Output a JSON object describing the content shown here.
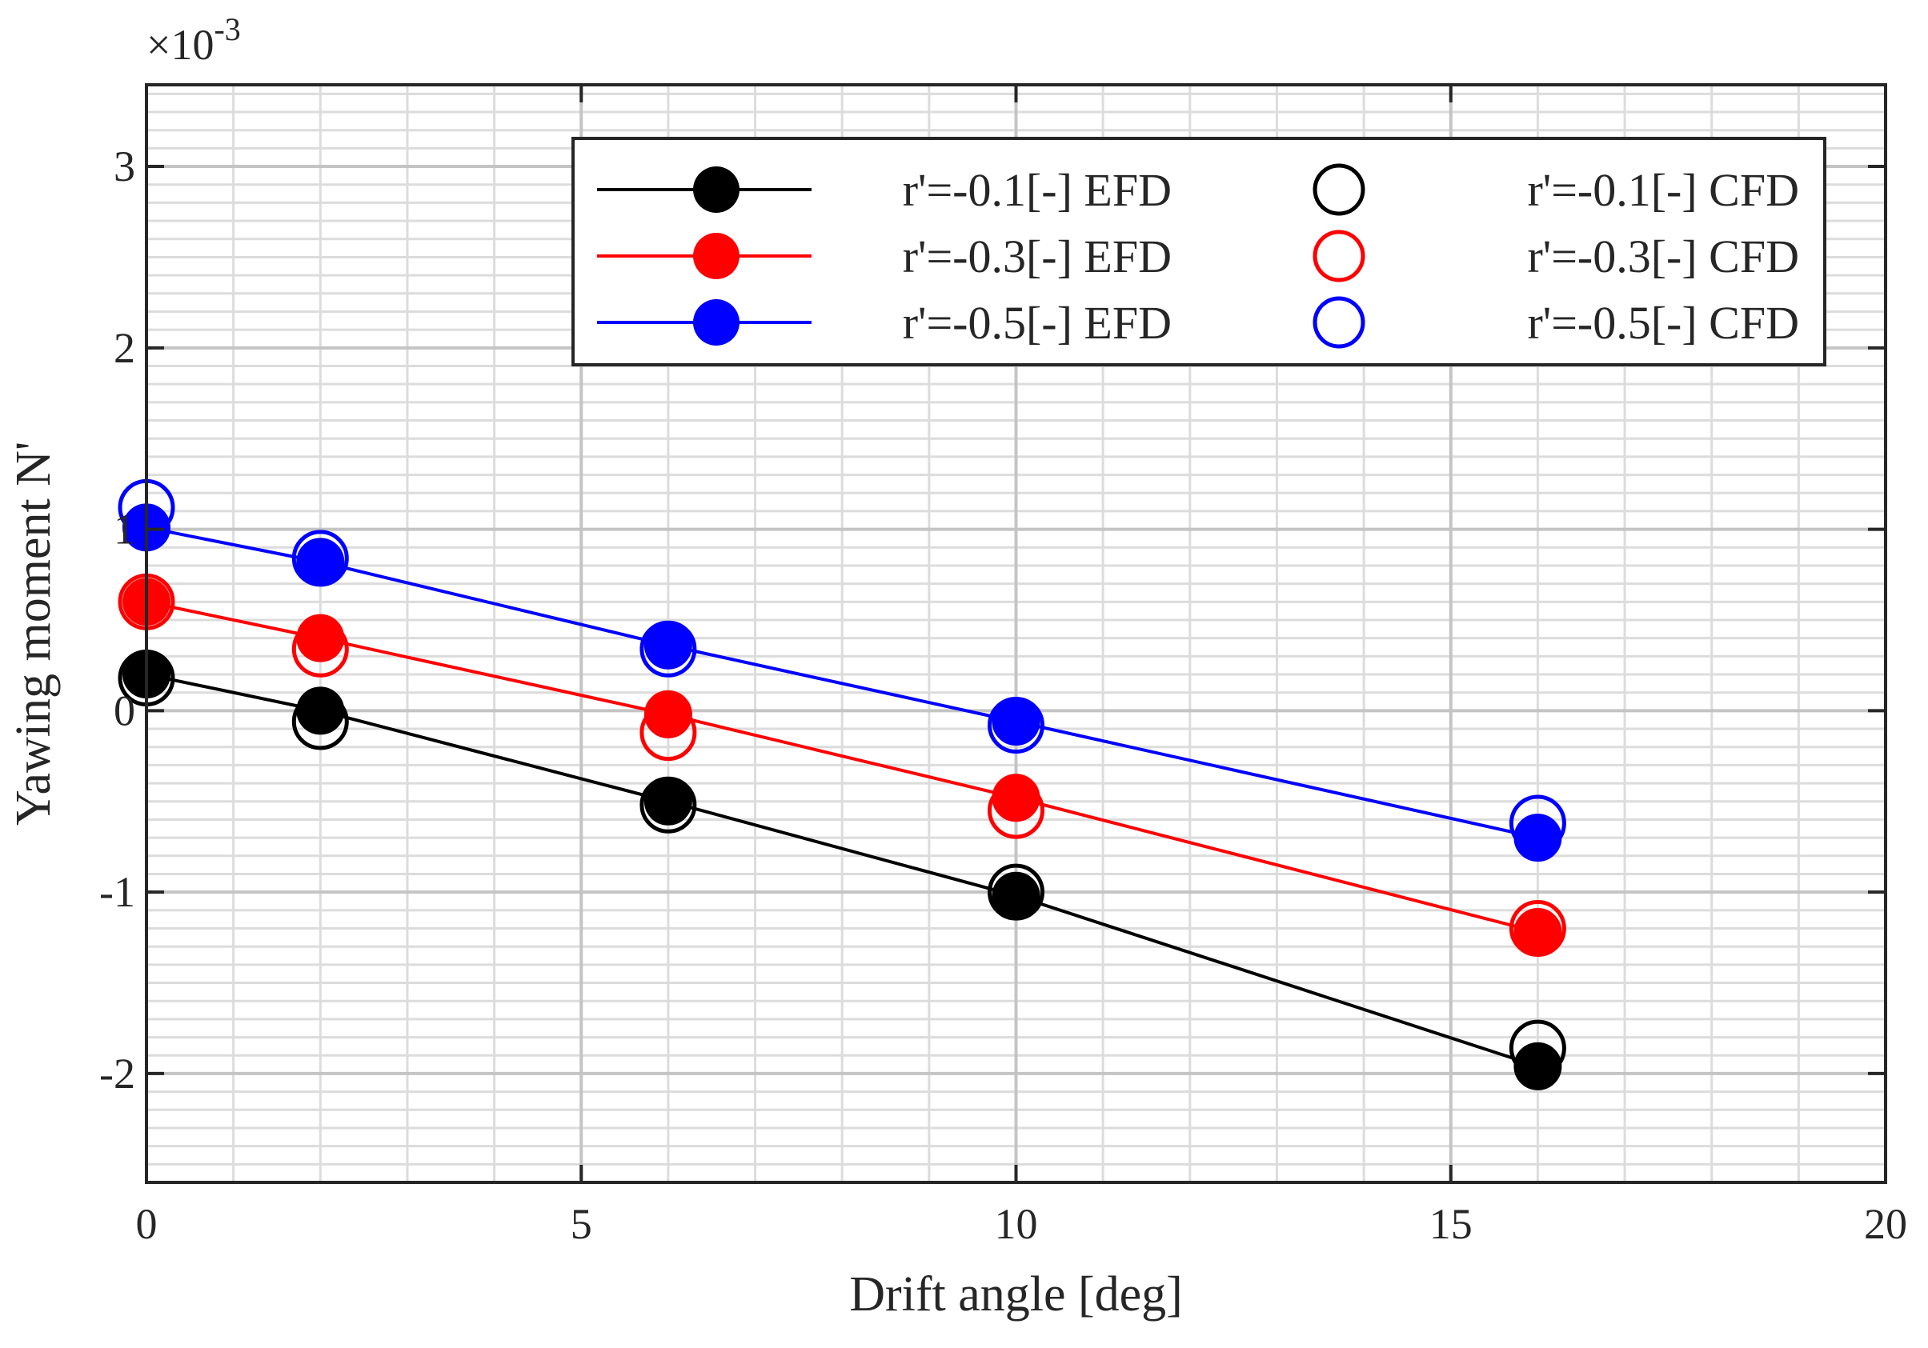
{
  "chart_data": {
    "type": "line",
    "title": "",
    "xlabel": "Drift angle [deg]",
    "ylabel": "Yawing moment N'",
    "y_exponent": "×10⁻³",
    "y_exponent_base": "×10",
    "y_exponent_power": "-3",
    "xlim": [
      0,
      20
    ],
    "ylim": [
      -2.6,
      3.45
    ],
    "xticks": [
      0,
      5,
      10,
      15,
      20
    ],
    "xtick_labels": [
      "0",
      "5",
      "10",
      "15",
      "20"
    ],
    "yticks": [
      -2,
      -1,
      0,
      1,
      2,
      3
    ],
    "ytick_labels": [
      "-2",
      "-1",
      "0",
      "1",
      "2",
      "3"
    ],
    "x_minor_step": 1,
    "y_minor_step": 0.1,
    "grid": true,
    "legend_position": "top-right",
    "legend_columns": 2,
    "series": [
      {
        "name": "r'=-0.1[-] EFD",
        "kind": "EFD",
        "color": "#000000",
        "marker": "filled-circle",
        "line": true,
        "x": [
          0,
          2,
          6,
          10,
          16
        ],
        "values": [
          0.2,
          0.0,
          -0.5,
          -1.02,
          -1.96
        ]
      },
      {
        "name": "r'=-0.3[-] EFD",
        "kind": "EFD",
        "color": "#ff0000",
        "marker": "filled-circle",
        "line": true,
        "x": [
          0,
          2,
          6,
          10,
          16
        ],
        "values": [
          0.6,
          0.4,
          -0.02,
          -0.48,
          -1.22
        ]
      },
      {
        "name": "r'=-0.5[-] EFD",
        "kind": "EFD",
        "color": "#0000ff",
        "marker": "filled-circle",
        "line": true,
        "x": [
          0,
          2,
          6,
          10,
          16
        ],
        "values": [
          1.01,
          0.82,
          0.36,
          -0.06,
          -0.7
        ]
      },
      {
        "name": "r'=-0.1[-] CFD",
        "kind": "CFD",
        "color": "#000000",
        "marker": "open-circle",
        "line": false,
        "x": [
          0,
          2,
          6,
          10,
          16
        ],
        "values": [
          0.18,
          -0.06,
          -0.52,
          -1.0,
          -1.86
        ]
      },
      {
        "name": "r'=-0.3[-] CFD",
        "kind": "CFD",
        "color": "#ff0000",
        "marker": "open-circle",
        "line": false,
        "x": [
          0,
          2,
          6,
          10,
          16
        ],
        "values": [
          0.6,
          0.34,
          -0.12,
          -0.55,
          -1.2
        ]
      },
      {
        "name": "r'=-0.5[-] CFD",
        "kind": "CFD",
        "color": "#0000ff",
        "marker": "open-circle",
        "line": false,
        "x": [
          0,
          2,
          6,
          10,
          16
        ],
        "values": [
          1.12,
          0.84,
          0.34,
          -0.08,
          -0.62
        ]
      }
    ]
  }
}
